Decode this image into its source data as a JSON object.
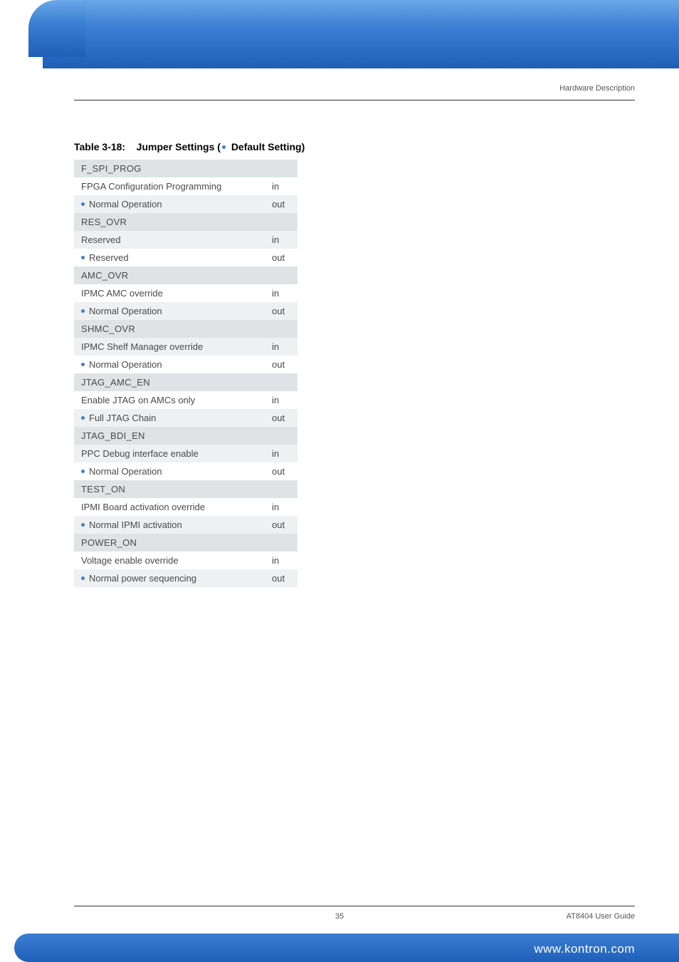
{
  "header": {
    "section_label": "Hardware Description"
  },
  "table": {
    "caption_prefix": "Table 3-18:",
    "caption_title": "Jumper Settings (",
    "caption_suffix": "Default Setting)",
    "col_widths": [
      "268px",
      "46px"
    ],
    "colors": {
      "header_bg": "#dfe3e6",
      "alt_bg": "#eef0f2",
      "plain_bg": "#ffffff",
      "text": "#4a4a4a",
      "bullet": "#3b7fd3"
    },
    "rows": [
      {
        "type": "header",
        "label": "F_SPI_PROG",
        "state": ""
      },
      {
        "type": "plain",
        "default": false,
        "label": "FPGA Configuration Programming",
        "state": "in"
      },
      {
        "type": "alt",
        "default": true,
        "label": "Normal Operation",
        "state": "out"
      },
      {
        "type": "header",
        "label": "RES_OVR",
        "state": ""
      },
      {
        "type": "alt",
        "default": false,
        "label": "Reserved",
        "state": "in"
      },
      {
        "type": "plain",
        "default": true,
        "label": "Reserved",
        "state": "out"
      },
      {
        "type": "header",
        "label": "AMC_OVR",
        "state": ""
      },
      {
        "type": "plain",
        "default": false,
        "label": "IPMC AMC override",
        "state": "in"
      },
      {
        "type": "alt",
        "default": true,
        "label": "Normal Operation",
        "state": "out"
      },
      {
        "type": "header",
        "label": "SHMC_OVR",
        "state": ""
      },
      {
        "type": "alt",
        "default": false,
        "label": "IPMC Shelf Manager override",
        "state": "in"
      },
      {
        "type": "plain",
        "default": true,
        "label": "Normal Operation",
        "state": "out"
      },
      {
        "type": "header",
        "label": "JTAG_AMC_EN",
        "state": ""
      },
      {
        "type": "plain",
        "default": false,
        "label": "Enable JTAG on AMCs only",
        "state": "in"
      },
      {
        "type": "alt",
        "default": true,
        "label": "Full JTAG Chain",
        "state": "out"
      },
      {
        "type": "header",
        "label": "JTAG_BDI_EN",
        "state": ""
      },
      {
        "type": "alt",
        "default": false,
        "label": "PPC Debug interface enable",
        "state": "in"
      },
      {
        "type": "plain",
        "default": true,
        "label": "Normal Operation",
        "state": "out"
      },
      {
        "type": "header",
        "label": "TEST_ON",
        "state": ""
      },
      {
        "type": "plain",
        "default": false,
        "label": "IPMI Board activation override",
        "state": "in"
      },
      {
        "type": "alt",
        "default": true,
        "label": "Normal IPMI activation",
        "state": "out"
      },
      {
        "type": "header",
        "label": "POWER_ON",
        "state": ""
      },
      {
        "type": "plain",
        "default": false,
        "label": "Voltage enable override",
        "state": "in"
      },
      {
        "type": "alt",
        "default": true,
        "label": "Normal power sequencing",
        "state": "out"
      }
    ]
  },
  "footer": {
    "page_number": "35",
    "doc_title": "AT8404 User  Guide",
    "url": "www.kontron.com"
  }
}
